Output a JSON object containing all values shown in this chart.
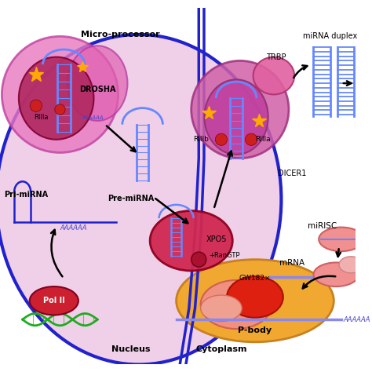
{
  "background_color": "#ffffff",
  "nucleus_color": "#f0d0e8",
  "nucleus_border_color": "#2222cc",
  "pbody_color": "#f0a830",
  "pbody_border_color": "#c88020",
  "labels": {
    "micro_processor": "Micro-processor",
    "drosha": "DROSHA",
    "rIIIa_drosha": "RIIIa",
    "pre_mirna": "Pre-miRNA",
    "pri_mirna": "Pri-miRNA",
    "pol_ii": "Pol II",
    "nucleus": "Nucleus",
    "cytoplasm": "Cytoplasm",
    "xpo5": "XPO5",
    "rangtp": "RanGTP",
    "trbp": "TRBP",
    "rIIIb": "RIIIb",
    "rIIIa_dicer": "RIIIa",
    "dicer1": "DICER1",
    "mirna_duplex": "miRNA duplex",
    "mirisc": "miRISC",
    "mrna": "mRNA",
    "gw182": "GW182",
    "pbody": "P-body",
    "aaaaa": "AAAAAA"
  },
  "colors": {
    "mp_outer": "#e878c0",
    "mp_inner": "#c03070",
    "drosha_dark": "#a02050",
    "hairpin_blue": "#6688ff",
    "poly_a": "#4444cc",
    "pol_ii_red": "#cc2030",
    "dna_green": "#22aa22",
    "xpo5_red": "#cc2040",
    "dicer_outer": "#cc60a0",
    "dicer_inner": "#b040a0",
    "trbp_pink": "#e060a0",
    "duplex_blue": "#6688ff",
    "mirisc_pink": "#f08080",
    "mrna_blue": "#8888ee",
    "pbody_red": "#dd2010",
    "pbody_pink": "#f09080",
    "star_yellow": "#ffaa00",
    "red_dot": "#cc2020",
    "blue_line": "#2222cc",
    "black": "#000000",
    "white": "#ffffff"
  }
}
